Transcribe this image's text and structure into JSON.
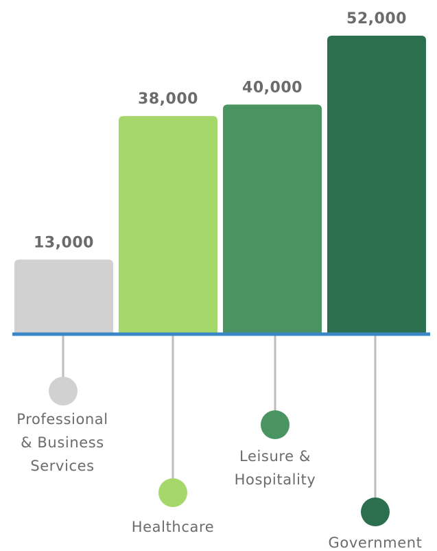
{
  "chart_data": {
    "type": "bar",
    "categories": [
      [
        "Professional",
        "& Business",
        "Services"
      ],
      [
        "Healthcare"
      ],
      [
        "Leisure &",
        "Hospitality"
      ],
      [
        "Government"
      ]
    ],
    "values": [
      13000,
      38000,
      40000,
      52000
    ],
    "value_labels": [
      "13,000",
      "38,000",
      "40,000",
      "52,000"
    ],
    "colors": [
      "#d1d1d1",
      "#a5d76a",
      "#4a9462",
      "#2b6f4e"
    ],
    "axis_color": "#3a87c8",
    "leader_color": "#bdbdbd",
    "ylim": [
      0,
      52000
    ],
    "grid": false,
    "legend": "none"
  }
}
